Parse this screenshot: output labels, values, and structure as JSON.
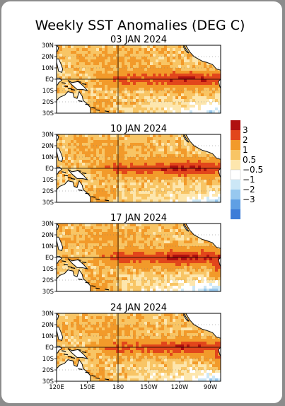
{
  "title": "Weekly SST Anomalies (DEG C)",
  "colors": {
    "neg_3": "#3c7cd8",
    "neg_2": "#5f9fe4",
    "neg_1": "#97c8ef",
    "neg_05": "#cce7f6",
    "white": "#ffffff",
    "pos_05": "#fde6ad",
    "pos_1": "#f8c565",
    "pos_2": "#f29a2a",
    "pos_3": "#e2461b",
    "pos_max": "#b01010",
    "land": "#ffffff",
    "coast": "#111111"
  },
  "chart_data": [
    {
      "type": "heatmap",
      "title": "03 JAN 2024",
      "variable": "SST anomaly (DEG C)",
      "lat_ticks": [
        "30N",
        "20N",
        "10N",
        "EQ",
        "10S",
        "20S",
        "30S"
      ],
      "summary": {
        "equatorial_peak_band": "2 to 3",
        "south_east_pacific": "-0.5 to 0.5"
      }
    },
    {
      "type": "heatmap",
      "title": "10 JAN 2024",
      "variable": "SST anomaly (DEG C)",
      "lat_ticks": [
        "30N",
        "20N",
        "10N",
        "EQ",
        "10S",
        "20S",
        "30S"
      ],
      "summary": {
        "equatorial_peak_band": "2 to 3",
        "south_east_pacific": "-0.5 to 0.5"
      }
    },
    {
      "type": "heatmap",
      "title": "17 JAN 2024",
      "variable": "SST anomaly (DEG C)",
      "lat_ticks": [
        "30N",
        "20N",
        "10N",
        "EQ",
        "10S",
        "20S",
        "30S"
      ],
      "summary": {
        "equatorial_peak_band": "2 to 3",
        "south_east_pacific": "-1 to 0.5"
      }
    },
    {
      "type": "heatmap",
      "title": "24 JAN 2024",
      "variable": "SST anomaly (DEG C)",
      "lat_ticks": [
        "30N",
        "20N",
        "10N",
        "EQ",
        "10S",
        "20S",
        "30S"
      ],
      "lon_ticks": [
        "120E",
        "150E",
        "180",
        "150W",
        "120W",
        "90W"
      ],
      "summary": {
        "equatorial_peak_band": "2 to 3",
        "south_east_pacific": "-1 to 0.5"
      }
    }
  ],
  "legend": {
    "labels": [
      "3",
      "2",
      "1",
      "0.5",
      "−0.5",
      "−1",
      "−2",
      "−3"
    ],
    "swatches": [
      "pos_max",
      "pos_3",
      "pos_2",
      "pos_1",
      "pos_05",
      "white",
      "neg_05",
      "neg_1",
      "neg_2",
      "neg_3"
    ]
  }
}
